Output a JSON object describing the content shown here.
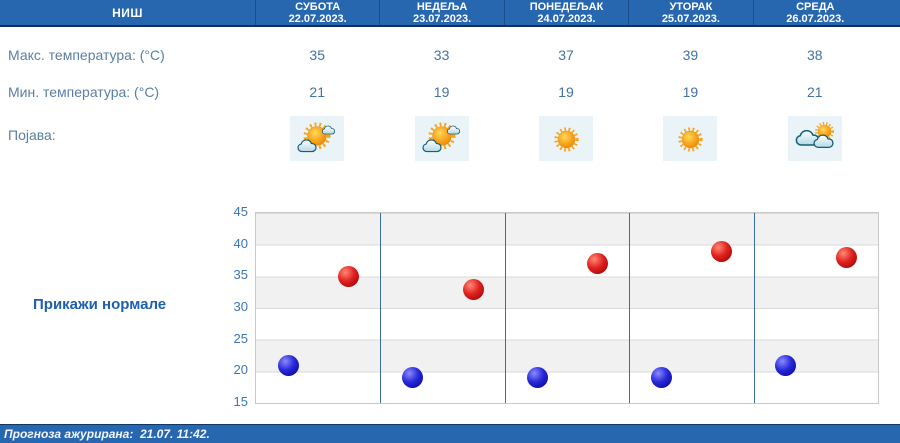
{
  "header": {
    "station": "НИШ"
  },
  "days": [
    {
      "name": "СУБОТА",
      "date": "22.07.2023.",
      "max": "35",
      "min": "21",
      "icon": "partly-cloudy"
    },
    {
      "name": "НЕДЕЉА",
      "date": "23.07.2023.",
      "max": "33",
      "min": "19",
      "icon": "partly-cloudy"
    },
    {
      "name": "ПОНЕДЕЉАК",
      "date": "24.07.2023.",
      "max": "37",
      "min": "19",
      "icon": "sunny"
    },
    {
      "name": "УТОРАК",
      "date": "25.07.2023.",
      "max": "39",
      "min": "19",
      "icon": "sunny"
    },
    {
      "name": "СРЕДА",
      "date": "26.07.2023.",
      "max": "38",
      "min": "21",
      "icon": "mostly-cloudy"
    }
  ],
  "labels": {
    "max": "Макс. температура: (°C)",
    "min": "Мин. температура: (°C)",
    "phenomenon": "Појава:"
  },
  "normals_button": "Прикажи нормале",
  "footer": {
    "updated": "Прогноза ажурирана:  21.07. 11:42."
  },
  "colors": {
    "header_bg": "#2767b0",
    "accent_text": "#1d60ae",
    "max_dot": "#cc0000",
    "min_dot": "#0000cc",
    "day_separator": "#3a6e9e",
    "icon_tile_bg": "#e9f3f8"
  },
  "chart_data": {
    "type": "scatter",
    "title": "",
    "x_categories": [
      "22.07.2023.",
      "23.07.2023.",
      "24.07.2023.",
      "25.07.2023.",
      "26.07.2023."
    ],
    "series": [
      {
        "name": "Макс. температура (°C)",
        "color": "#cc0000",
        "values": [
          35,
          33,
          37,
          39,
          38
        ]
      },
      {
        "name": "Мин. температура (°C)",
        "color": "#0000cc",
        "values": [
          21,
          19,
          19,
          19,
          21
        ]
      }
    ],
    "ylim": [
      15,
      45
    ],
    "yticks": [
      45,
      40,
      35,
      30,
      25,
      20,
      15
    ],
    "xlabel": "",
    "ylabel": "",
    "grid": "horizontal gray/white bands every 5°, blue vertical separators between days",
    "legend": "none"
  }
}
